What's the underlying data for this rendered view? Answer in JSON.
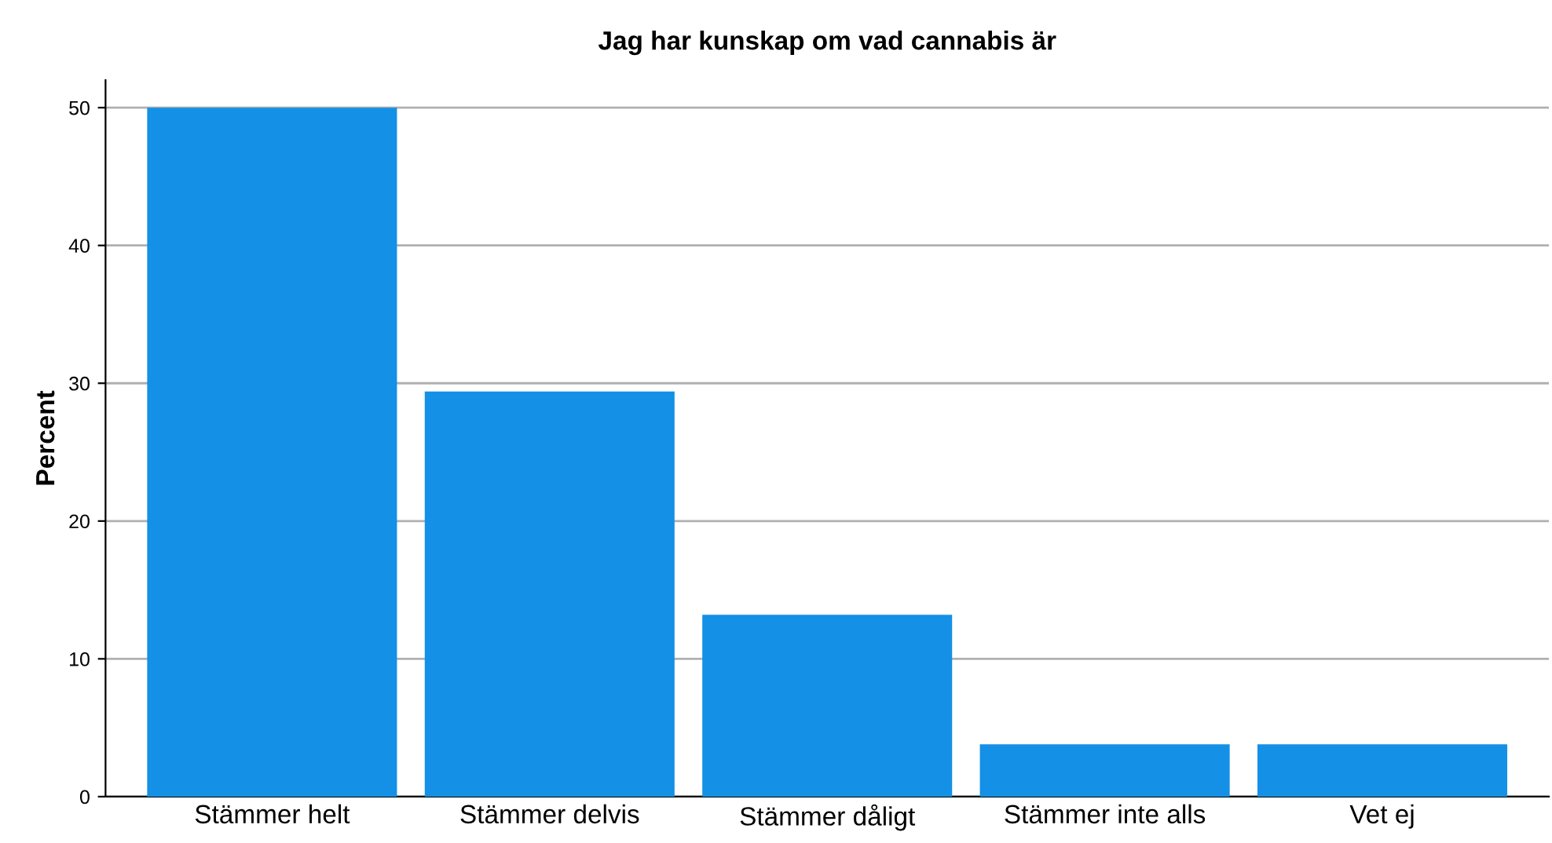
{
  "chart_data": {
    "type": "bar",
    "title": "Jag har kunskap om vad cannabis är",
    "ylabel": "Percent",
    "categories": [
      "Stämmer helt",
      "Stämmer delvis",
      "Stämmer dåligt",
      "Stämmer inte alls",
      "Vet ej"
    ],
    "values": [
      50,
      29.4,
      13.2,
      3.8,
      3.8
    ],
    "color": "#1490e6",
    "ylim": [
      0,
      52
    ],
    "yticks": [
      0,
      10,
      20,
      30,
      40,
      50
    ],
    "grid": "y",
    "legend": false
  }
}
